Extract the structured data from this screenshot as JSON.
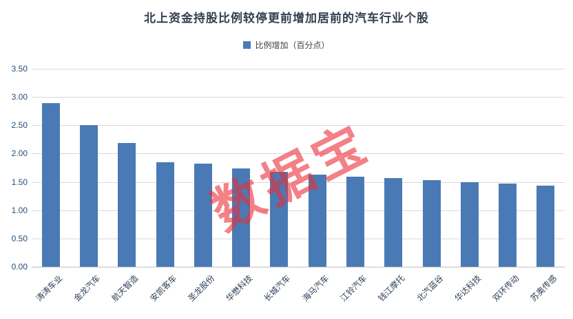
{
  "chart_data": {
    "type": "bar",
    "title": "北上资金持股比例较停更前增加居前的汽车行业个股",
    "legend": [
      "比例增加（百分点）"
    ],
    "categories": [
      "涛涛车业",
      "金龙汽车",
      "航天智造",
      "安凯客车",
      "圣龙股份",
      "华懋科技",
      "长城汽车",
      "海马汽车",
      "江铃汽车",
      "钱江摩托",
      "北汽蓝谷",
      "华达科技",
      "双环传动",
      "苏奥传感"
    ],
    "values": [
      2.89,
      2.5,
      2.19,
      1.85,
      1.82,
      1.74,
      1.68,
      1.63,
      1.59,
      1.57,
      1.53,
      1.49,
      1.47,
      1.43
    ],
    "ylim": [
      0,
      3.5
    ],
    "ytick_step": 0.5,
    "ytick_labels": [
      "0.00",
      "0.50",
      "1.00",
      "1.50",
      "2.00",
      "2.50",
      "3.00",
      "3.50"
    ],
    "grid": true,
    "legend_position": "top",
    "bar_color": "#4A7AB5",
    "xlabel": "",
    "ylabel": "",
    "watermark": "数据宝"
  }
}
